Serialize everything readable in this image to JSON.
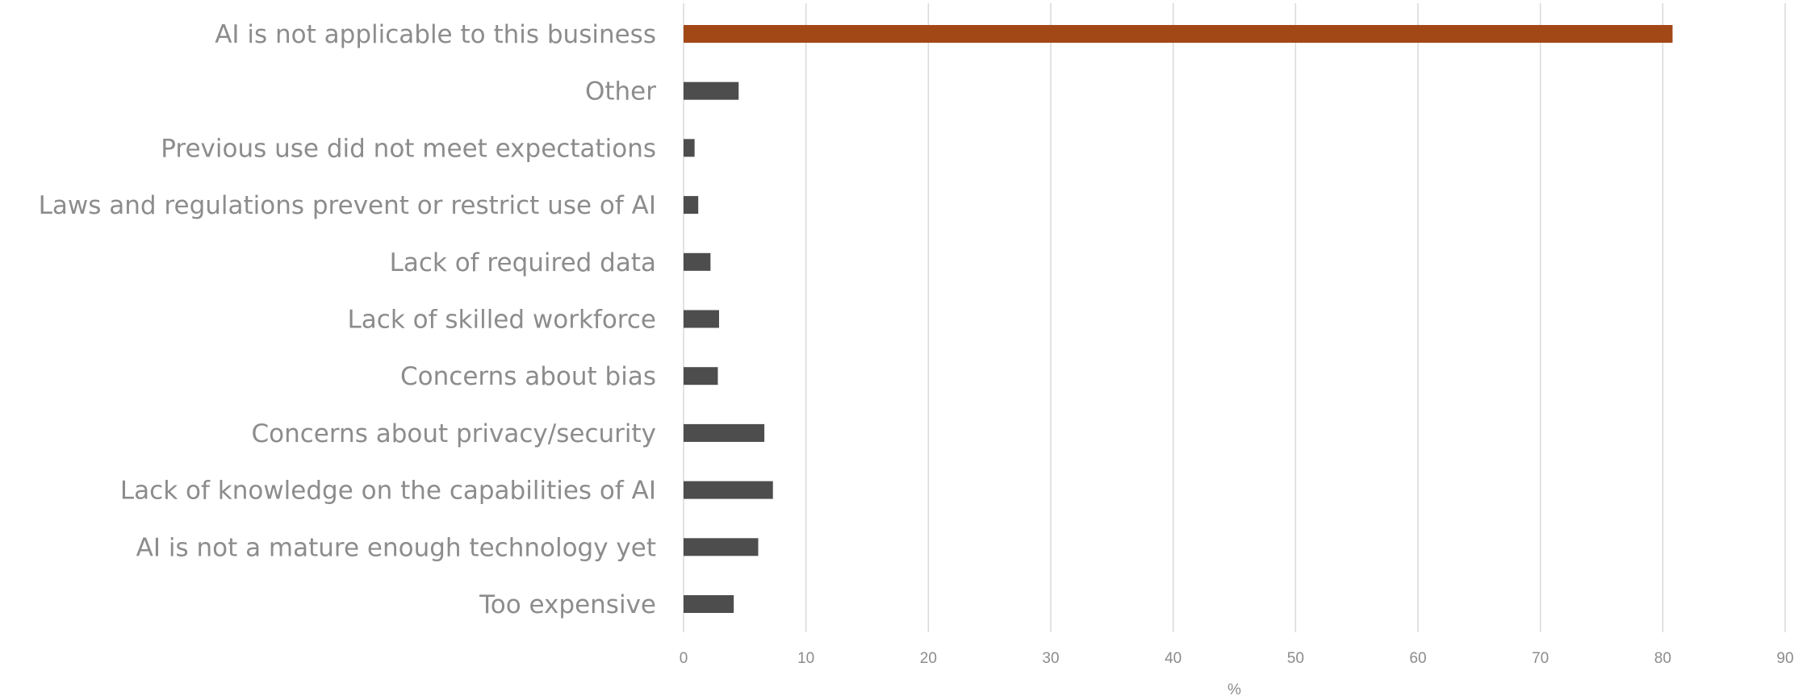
{
  "chart_data": {
    "type": "bar",
    "orientation": "horizontal",
    "title": "",
    "xlabel": "%",
    "ylabel": "",
    "xlim": [
      0,
      90
    ],
    "xticks": [
      0,
      10,
      20,
      30,
      40,
      50,
      60,
      70,
      80,
      90
    ],
    "grid": "vertical",
    "legend": "none",
    "colors": {
      "default": "#4d4d4d",
      "highlight": "#a24817"
    },
    "categories": [
      "AI is not applicable to this business",
      "Other",
      "Previous use did not meet expectations",
      "Laws and regulations prevent or restrict use of AI",
      "Lack of required data",
      "Lack of skilled workforce",
      "Concerns about bias",
      "Concerns about privacy/security",
      "Lack of knowledge on the capabilities of AI",
      "AI is not a mature enough technology yet",
      "Too expensive"
    ],
    "values": [
      80.8,
      4.5,
      0.9,
      1.2,
      2.2,
      2.9,
      2.8,
      6.6,
      7.3,
      6.1,
      4.1
    ],
    "highlight_index": 0
  }
}
